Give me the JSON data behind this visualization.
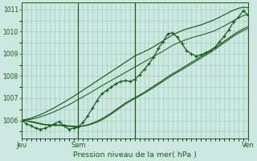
{
  "xlabel": "Pression niveau de la mer( hPa )",
  "ylim": [
    1005.2,
    1011.3
  ],
  "xlim": [
    0,
    48
  ],
  "yticks": [
    1006,
    1007,
    1008,
    1009,
    1010,
    1011
  ],
  "xtick_positions": [
    0,
    12,
    24,
    48
  ],
  "xtick_labels": [
    "Jeu",
    "Sam",
    "",
    "Ven"
  ],
  "vlines": [
    12,
    24,
    48
  ],
  "vline_bold": [
    12,
    48
  ],
  "bg_color": "#cce8e0",
  "plot_bg": "#cce8e0",
  "grid_color": "#99ccbb",
  "line_dark": "#1a5c1a",
  "line_med": "#2d7a2d",
  "pressure_main": [
    1006.0,
    1005.85,
    1005.75,
    1005.65,
    1005.6,
    1005.65,
    1005.75,
    1005.85,
    1005.95,
    1005.75,
    1005.6,
    1005.65,
    1005.7,
    1005.9,
    1006.2,
    1006.55,
    1006.9,
    1007.2,
    1007.35,
    1007.5,
    1007.65,
    1007.75,
    1007.8,
    1007.75,
    1007.85,
    1008.05,
    1008.3,
    1008.55,
    1008.85,
    1009.25,
    1009.55,
    1009.9,
    1009.95,
    1009.75,
    1009.45,
    1009.15,
    1009.0,
    1008.9,
    1008.95,
    1009.05,
    1009.15,
    1009.3,
    1009.55,
    1009.8,
    1010.1,
    1010.45,
    1010.65,
    1010.95,
    1010.75
  ],
  "pressure_upper1": [
    1006.0,
    1006.05,
    1006.1,
    1006.18,
    1006.26,
    1006.36,
    1006.47,
    1006.58,
    1006.7,
    1006.82,
    1006.95,
    1007.08,
    1007.22,
    1007.36,
    1007.5,
    1007.64,
    1007.78,
    1007.92,
    1008.06,
    1008.2,
    1008.34,
    1008.48,
    1008.62,
    1008.76,
    1008.9,
    1009.0,
    1009.1,
    1009.2,
    1009.32,
    1009.45,
    1009.58,
    1009.72,
    1009.85,
    1009.95,
    1010.05,
    1010.12,
    1010.18,
    1010.24,
    1010.3,
    1010.38,
    1010.46,
    1010.55,
    1010.65,
    1010.76,
    1010.87,
    1010.97,
    1011.05,
    1011.1,
    1011.08
  ],
  "pressure_upper2": [
    1006.0,
    1006.02,
    1006.05,
    1006.1,
    1006.16,
    1006.23,
    1006.31,
    1006.4,
    1006.5,
    1006.6,
    1006.7,
    1006.82,
    1006.94,
    1007.06,
    1007.18,
    1007.3,
    1007.43,
    1007.56,
    1007.68,
    1007.8,
    1007.92,
    1008.04,
    1008.16,
    1008.28,
    1008.4,
    1008.52,
    1008.64,
    1008.76,
    1008.88,
    1009.0,
    1009.12,
    1009.25,
    1009.38,
    1009.48,
    1009.57,
    1009.65,
    1009.72,
    1009.78,
    1009.84,
    1009.9,
    1009.97,
    1010.05,
    1010.15,
    1010.26,
    1010.38,
    1010.5,
    1010.62,
    1010.72,
    1010.78
  ],
  "pressure_lower1": [
    1006.0,
    1005.97,
    1005.93,
    1005.88,
    1005.83,
    1005.8,
    1005.78,
    1005.77,
    1005.77,
    1005.75,
    1005.73,
    1005.72,
    1005.72,
    1005.75,
    1005.8,
    1005.87,
    1005.96,
    1006.07,
    1006.2,
    1006.33,
    1006.48,
    1006.63,
    1006.78,
    1006.9,
    1007.02,
    1007.14,
    1007.26,
    1007.4,
    1007.54,
    1007.68,
    1007.82,
    1007.96,
    1008.1,
    1008.22,
    1008.35,
    1008.48,
    1008.61,
    1008.74,
    1008.87,
    1009.0,
    1009.13,
    1009.27,
    1009.42,
    1009.57,
    1009.72,
    1009.87,
    1010.0,
    1010.12,
    1010.22
  ],
  "pressure_lower2": [
    1006.0,
    1005.98,
    1005.95,
    1005.91,
    1005.86,
    1005.82,
    1005.8,
    1005.79,
    1005.8,
    1005.78,
    1005.76,
    1005.74,
    1005.73,
    1005.74,
    1005.78,
    1005.84,
    1005.92,
    1006.02,
    1006.14,
    1006.28,
    1006.43,
    1006.58,
    1006.73,
    1006.86,
    1006.98,
    1007.1,
    1007.22,
    1007.35,
    1007.48,
    1007.62,
    1007.76,
    1007.9,
    1008.04,
    1008.16,
    1008.28,
    1008.41,
    1008.54,
    1008.67,
    1008.8,
    1008.93,
    1009.06,
    1009.2,
    1009.35,
    1009.5,
    1009.65,
    1009.8,
    1009.93,
    1010.04,
    1010.14
  ]
}
